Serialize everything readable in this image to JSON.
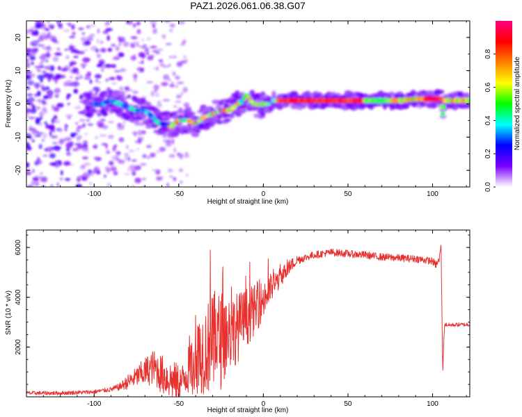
{
  "title": "PAZ1.2026.061.06.38.G07",
  "chart_data": [
    {
      "type": "heatmap",
      "xlabel": "Height of straight line (km)",
      "ylabel": "Frequency (Hz)",
      "xlim": [
        -140,
        122
      ],
      "ylim": [
        -25,
        25
      ],
      "xticks": [
        -100,
        -50,
        0,
        50,
        100
      ],
      "xtick_labels": [
        "-100",
        "-50",
        "0",
        "50",
        "100"
      ],
      "yticks": [
        -20,
        -10,
        0,
        10,
        20
      ],
      "ytick_labels": [
        "-20",
        "-10",
        "0",
        "10",
        "20"
      ],
      "ridge": {
        "x": [
          -140,
          -100,
          -95,
          -90,
          -85,
          -80,
          -75,
          -70,
          -65,
          -62,
          -58,
          -55,
          -50,
          -45,
          -40,
          -35,
          -30,
          -25,
          -20,
          -15,
          -12,
          -10,
          -8,
          -5,
          -2,
          0,
          3,
          6,
          8,
          10,
          20,
          40,
          60,
          80,
          90,
          100,
          105,
          106,
          107,
          110,
          115,
          122
        ],
        "frequency_hz": [
          0,
          0,
          0,
          1,
          0,
          -1,
          -2,
          -2,
          -4,
          -6,
          -6,
          -7,
          -5,
          -5,
          -6,
          -4,
          -3,
          -2,
          -2,
          0,
          1,
          3,
          1,
          0,
          -0.5,
          0,
          0,
          1,
          1,
          1,
          1,
          1,
          1,
          1,
          1.5,
          1.5,
          1.5,
          -3,
          1,
          1,
          1,
          1
        ]
      },
      "colorbar": {
        "label": "Normalized spectral amplitude",
        "range": [
          0,
          1
        ],
        "ticks": [
          0.0,
          0.2,
          0.4,
          0.6,
          0.8
        ],
        "tick_labels": [
          "0.0",
          "0.2",
          "0.4",
          "0.6",
          "0.8"
        ],
        "colors": [
          "#ffffff",
          "#7a00ff",
          "#0000ff",
          "#00ffff",
          "#00ff00",
          "#ffff00",
          "#ff8000",
          "#ff0000",
          "#ff0080"
        ]
      }
    },
    {
      "type": "line",
      "xlabel": "Height of straight line (km)",
      "ylabel": "SNR (10 * v/v)",
      "xlim": [
        -140,
        122
      ],
      "ylim": [
        0,
        6700
      ],
      "xticks": [
        -100,
        -50,
        0,
        50,
        100
      ],
      "xtick_labels": [
        "-100",
        "-50",
        "0",
        "50",
        "100"
      ],
      "yticks": [
        2000,
        4000,
        6000
      ],
      "ytick_labels": [
        "2000",
        "4000",
        "6000"
      ],
      "line_color": "#e8312f",
      "series": [
        {
          "name": "SNR",
          "x": [
            -140,
            -120,
            -100,
            -90,
            -85,
            -80,
            -75,
            -70,
            -65,
            -60,
            -55,
            -52,
            -48,
            -45,
            -40,
            -35,
            -30,
            -25,
            -20,
            -15,
            -10,
            -5,
            0,
            5,
            10,
            15,
            20,
            25,
            30,
            35,
            40,
            45,
            50,
            55,
            60,
            65,
            70,
            75,
            80,
            85,
            90,
            95,
            100,
            102,
            104,
            105,
            106,
            107,
            108,
            110,
            115,
            122
          ],
          "values": [
            150,
            150,
            200,
            300,
            400,
            600,
            800,
            1000,
            1200,
            900,
            700,
            600,
            600,
            1000,
            1500,
            1900,
            2100,
            2300,
            2600,
            2800,
            3200,
            3500,
            3900,
            4400,
            4800,
            5200,
            5500,
            5600,
            5700,
            5750,
            5800,
            5780,
            5750,
            5720,
            5700,
            5650,
            5620,
            5600,
            5580,
            5560,
            5550,
            5500,
            5450,
            5300,
            5500,
            6200,
            1000,
            2900,
            2900,
            2880,
            2900,
            2900
          ],
          "noise_envelope": [
            80,
            80,
            80,
            100,
            150,
            300,
            400,
            600,
            700,
            800,
            800,
            800,
            700,
            900,
            1400,
            1800,
            2000,
            2000,
            1600,
            1400,
            1200,
            1000,
            800,
            600,
            400,
            300,
            200,
            150,
            150,
            150,
            150,
            150,
            150,
            150,
            150,
            150,
            150,
            150,
            150,
            150,
            150,
            150,
            150,
            150,
            150,
            150,
            100,
            80,
            80,
            80,
            80,
            80
          ]
        }
      ]
    }
  ]
}
